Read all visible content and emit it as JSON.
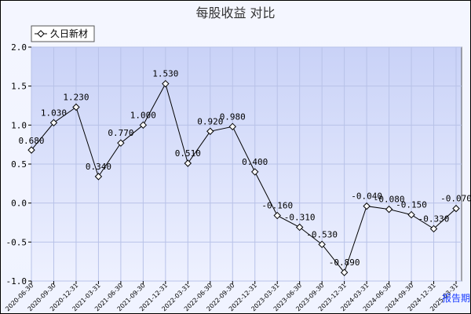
{
  "chart_data": {
    "type": "line",
    "title": "每股收益  对比",
    "ylim": [
      -1.0,
      2.0
    ],
    "yticks": [
      "2.0",
      "1.5",
      "1.0",
      "0.5",
      "0.0",
      "-0.5",
      "-1.0"
    ],
    "grid": true,
    "legend": "top-left",
    "x": [
      "2020-06-30",
      "2020-09-30",
      "2020-12-31",
      "2021-03-31",
      "2021-06-30",
      "2021-09-30",
      "2021-12-31",
      "2022-03-31",
      "2022-06-30",
      "2022-09-30",
      "2022-12-31",
      "2023-03-31",
      "2023-06-30",
      "2023-09-30",
      "2023-12-31",
      "2024-03-31",
      "2024-06-30",
      "2024-09-30",
      "2024-12-31",
      "2025-03-31"
    ],
    "series": [
      {
        "name": "久日新材",
        "values": [
          0.68,
          1.03,
          1.23,
          0.34,
          0.77,
          1.0,
          1.53,
          0.51,
          0.92,
          0.98,
          0.4,
          -0.16,
          -0.31,
          -0.53,
          -0.89,
          -0.04,
          -0.08,
          -0.15,
          -0.33,
          -0.07
        ],
        "labels": [
          "0.680",
          "1.030",
          "1.230",
          "0.340",
          "0.770",
          "1.000",
          "1.530",
          "0.510",
          "0.920",
          "0.980",
          "0.400",
          "-0.160",
          "-0.310",
          "-0.530",
          "-0.890",
          "-0.040",
          "-0.080",
          "-0.150",
          "-0.330",
          "-0.070"
        ]
      }
    ],
    "period_label": "报告期"
  },
  "colors": {
    "plot_bg_top": "#c9d2f7",
    "plot_bg_bottom": "#eef1ff",
    "grid": "#b8c2e8",
    "line": "#000000",
    "marker_fill": "#ffffff",
    "period": "#1a3cff"
  }
}
